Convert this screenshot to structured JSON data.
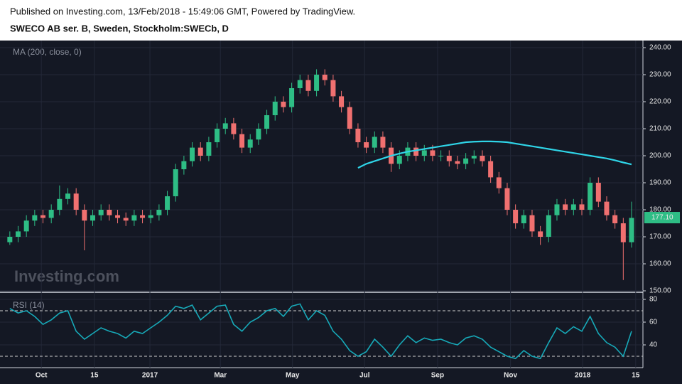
{
  "header": {
    "published": "Published on Investing.com, 13/Feb/2018 - 15:49:06 GMT, Powered by TradingView.",
    "symbol": "SWECO AB ser. B, Sweden, Stockholm:SWECb, D"
  },
  "chart_data": [
    {
      "type": "candlestick",
      "indicator": "MA (200, close, 0)",
      "watermark": "Investing.com",
      "up_color": "#2ebd85",
      "down_color": "#f07070",
      "x": [
        0,
        1,
        2,
        3,
        4,
        5,
        6,
        7,
        8,
        9,
        10,
        11,
        12,
        13,
        14,
        15,
        16,
        17,
        18,
        19,
        20,
        21,
        22,
        23,
        24,
        25,
        26,
        27,
        28,
        29,
        30,
        31,
        32,
        33,
        34,
        35,
        36,
        37,
        38,
        39,
        40,
        41,
        42,
        43,
        44,
        45,
        46,
        47,
        48,
        49,
        50,
        51,
        52,
        53,
        54,
        55,
        56,
        57,
        58,
        59,
        60,
        61,
        62,
        63,
        64,
        65,
        66,
        67,
        68,
        69,
        70,
        71,
        72,
        73,
        74,
        75
      ],
      "open": [
        168,
        170,
        172,
        176,
        178,
        177,
        180,
        184,
        186,
        180,
        176,
        178,
        180,
        178,
        177,
        176,
        178,
        177,
        178,
        180,
        185,
        195,
        198,
        203,
        200,
        205,
        210,
        212,
        208,
        203,
        206,
        210,
        215,
        220,
        218,
        225,
        228,
        224,
        230,
        228,
        222,
        218,
        210,
        205,
        203,
        207,
        203,
        197,
        200,
        203,
        200,
        202,
        200,
        200,
        198,
        197,
        199,
        200,
        198,
        192,
        188,
        180,
        175,
        178,
        172,
        170,
        178,
        182,
        180,
        182,
        180,
        190,
        183,
        178,
        175,
        168
      ],
      "high": [
        172,
        174,
        178,
        180,
        180,
        182,
        189,
        188,
        188,
        182,
        180,
        182,
        182,
        180,
        179,
        180,
        180,
        180,
        182,
        187,
        197,
        200,
        205,
        205,
        207,
        212,
        214,
        214,
        210,
        208,
        212,
        217,
        222,
        222,
        227,
        230,
        230,
        232,
        232,
        230,
        224,
        220,
        212,
        207,
        209,
        209,
        205,
        202,
        205,
        205,
        204,
        204,
        202,
        202,
        200,
        201,
        202,
        202,
        200,
        194,
        190,
        182,
        180,
        180,
        174,
        180,
        184,
        184,
        184,
        184,
        192,
        192,
        185,
        180,
        177,
        183
      ],
      "low": [
        167,
        168,
        170,
        174,
        175,
        175,
        178,
        182,
        178,
        165,
        174,
        176,
        176,
        175,
        174,
        174,
        175,
        175,
        176,
        178,
        183,
        193,
        196,
        198,
        198,
        203,
        208,
        206,
        201,
        201,
        204,
        208,
        213,
        216,
        216,
        223,
        222,
        222,
        226,
        220,
        216,
        208,
        203,
        201,
        201,
        201,
        194,
        195,
        198,
        198,
        198,
        198,
        198,
        196,
        195,
        195,
        197,
        196,
        190,
        186,
        178,
        173,
        173,
        170,
        167,
        168,
        176,
        178,
        178,
        178,
        178,
        181,
        176,
        173,
        154,
        166
      ],
      "close": [
        170,
        172,
        176,
        178,
        177,
        180,
        184,
        186,
        180,
        176,
        178,
        180,
        178,
        177,
        176,
        178,
        177,
        178,
        180,
        185,
        195,
        198,
        203,
        200,
        205,
        210,
        212,
        208,
        203,
        206,
        210,
        215,
        220,
        218,
        225,
        228,
        224,
        230,
        228,
        222,
        218,
        210,
        205,
        203,
        207,
        203,
        197,
        200,
        203,
        200,
        202,
        200,
        200,
        198,
        197,
        199,
        200,
        198,
        192,
        188,
        180,
        175,
        178,
        172,
        170,
        178,
        182,
        180,
        182,
        180,
        190,
        183,
        178,
        175,
        168,
        177
      ],
      "series": [
        {
          "color": "#2fd5e8",
          "values": [
            null,
            null,
            null,
            null,
            null,
            null,
            null,
            null,
            null,
            null,
            null,
            null,
            null,
            null,
            null,
            null,
            null,
            null,
            null,
            null,
            null,
            null,
            null,
            null,
            null,
            null,
            null,
            null,
            null,
            null,
            null,
            null,
            null,
            null,
            null,
            null,
            null,
            null,
            null,
            null,
            null,
            null,
            195.5,
            197,
            198,
            199,
            200,
            200.8,
            201.5,
            202,
            202.5,
            203,
            203.5,
            204,
            204.5,
            205,
            205.2,
            205.3,
            205.3,
            205.2,
            205,
            204.5,
            204,
            203.5,
            203,
            202.5,
            202,
            201.5,
            201,
            200.5,
            200,
            199.5,
            199,
            198.3,
            197.5,
            196.8
          ]
        }
      ],
      "last_price": {
        "value": 177.1,
        "label": "177.10"
      },
      "xlim": [
        -0.5,
        76.2
      ],
      "xticks": [
        {
          "value": 3.8,
          "label": "Oct"
        },
        {
          "value": 10.2,
          "label": "15"
        },
        {
          "value": 16.9,
          "label": "2017"
        },
        {
          "value": 25.4,
          "label": "Mar"
        },
        {
          "value": 34.1,
          "label": "May"
        },
        {
          "value": 42.8,
          "label": "Jul"
        },
        {
          "value": 51.6,
          "label": "Sep"
        },
        {
          "value": 60.4,
          "label": "Nov"
        },
        {
          "value": 69.1,
          "label": "2018"
        },
        {
          "value": 75.5,
          "label": "15"
        }
      ],
      "ylim": [
        150,
        240
      ],
      "yticks": [
        {
          "value": 150,
          "label": "150.00"
        },
        {
          "value": 160,
          "label": "160.00"
        },
        {
          "value": 170,
          "label": "170.00"
        },
        {
          "value": 180,
          "label": "180.00"
        },
        {
          "value": 190,
          "label": "190.00"
        },
        {
          "value": 200,
          "label": "200.00"
        },
        {
          "value": 210,
          "label": "210.00"
        },
        {
          "value": 220,
          "label": "220.00"
        },
        {
          "value": 230,
          "label": "230.00"
        },
        {
          "value": 240,
          "label": "240.00"
        }
      ],
      "grid": true
    },
    {
      "type": "line",
      "indicator": "RSI (14)",
      "color": "#17a9b8",
      "x": [
        0,
        1,
        2,
        3,
        4,
        5,
        6,
        7,
        8,
        9,
        10,
        11,
        12,
        13,
        14,
        15,
        16,
        17,
        18,
        19,
        20,
        21,
        22,
        23,
        24,
        25,
        26,
        27,
        28,
        29,
        30,
        31,
        32,
        33,
        34,
        35,
        36,
        37,
        38,
        39,
        40,
        41,
        42,
        43,
        44,
        45,
        46,
        47,
        48,
        49,
        50,
        51,
        52,
        53,
        54,
        55,
        56,
        57,
        58,
        59,
        60,
        61,
        62,
        63,
        64,
        65,
        66,
        67,
        68,
        69,
        70,
        71,
        72,
        73,
        74,
        75
      ],
      "values": [
        72,
        68,
        70,
        65,
        58,
        62,
        68,
        70,
        52,
        45,
        50,
        55,
        52,
        50,
        46,
        52,
        50,
        55,
        60,
        66,
        74,
        72,
        75,
        62,
        68,
        74,
        75,
        58,
        52,
        60,
        64,
        70,
        72,
        65,
        74,
        76,
        62,
        70,
        66,
        52,
        45,
        35,
        30,
        34,
        45,
        38,
        30,
        40,
        48,
        42,
        46,
        44,
        45,
        42,
        40,
        46,
        48,
        45,
        38,
        34,
        30,
        28,
        35,
        30,
        28,
        42,
        55,
        50,
        56,
        52,
        65,
        50,
        42,
        38,
        30,
        52
      ],
      "levels": [
        30,
        70
      ],
      "xlim": [
        -0.5,
        76.2
      ],
      "ylim": [
        20,
        80
      ],
      "yticks": [
        40,
        60,
        80
      ],
      "grid": true
    }
  ]
}
